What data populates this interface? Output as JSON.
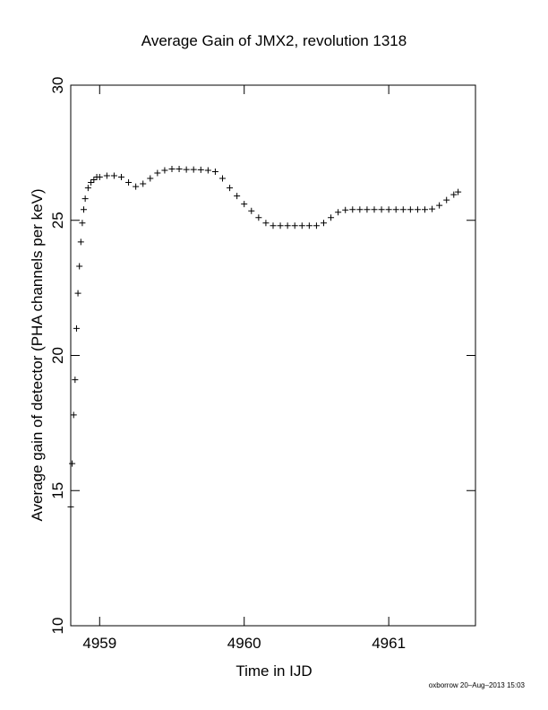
{
  "chart_data": {
    "type": "scatter",
    "title": "Average Gain of JMX2, revolution 1318",
    "xlabel": "Time in IJD",
    "ylabel": "Average gain of detector (PHA channels per keV)",
    "xlim": [
      4958.8,
      4961.6
    ],
    "ylim": [
      10,
      30
    ],
    "xticks": [
      4959,
      4960,
      4961
    ],
    "yticks": [
      10,
      15,
      20,
      25,
      30
    ],
    "marker": "+",
    "color": "#000000",
    "series": [
      {
        "x": [
          4958.8,
          4958.81,
          4958.82,
          4958.83,
          4958.84,
          4958.85,
          4958.86,
          4958.87,
          4958.88,
          4958.89,
          4958.9,
          4958.92,
          4958.94,
          4958.96,
          4958.98,
          4959.0,
          4959.05,
          4959.1,
          4959.15,
          4959.2,
          4959.25,
          4959.3,
          4959.35,
          4959.4,
          4959.45,
          4959.5,
          4959.55,
          4959.6,
          4959.65,
          4959.7,
          4959.75,
          4959.8,
          4959.85,
          4959.9,
          4959.95,
          4960.0,
          4960.05,
          4960.1,
          4960.15,
          4960.2,
          4960.25,
          4960.3,
          4960.35,
          4960.4,
          4960.45,
          4960.5,
          4960.55,
          4960.6,
          4960.65,
          4960.7,
          4960.75,
          4960.8,
          4960.85,
          4960.9,
          4960.95,
          4961.0,
          4961.05,
          4961.1,
          4961.15,
          4961.2,
          4961.25,
          4961.3,
          4961.35,
          4961.4,
          4961.45,
          4961.48
        ],
        "y": [
          14.4,
          16.0,
          17.8,
          19.1,
          21.0,
          22.3,
          23.3,
          24.2,
          24.9,
          25.4,
          25.8,
          26.2,
          26.4,
          26.5,
          26.6,
          26.6,
          26.65,
          26.65,
          26.6,
          26.4,
          26.25,
          26.35,
          26.55,
          26.75,
          26.85,
          26.9,
          26.9,
          26.88,
          26.88,
          26.87,
          26.85,
          26.8,
          26.55,
          26.2,
          25.9,
          25.6,
          25.35,
          25.1,
          24.9,
          24.8,
          24.8,
          24.8,
          24.8,
          24.8,
          24.8,
          24.8,
          24.9,
          25.1,
          25.3,
          25.38,
          25.4,
          25.4,
          25.4,
          25.4,
          25.4,
          25.4,
          25.4,
          25.4,
          25.4,
          25.4,
          25.4,
          25.42,
          25.55,
          25.75,
          25.95,
          26.05
        ]
      }
    ]
  },
  "credit": "oxborrow 20–Aug–2013 15:03"
}
